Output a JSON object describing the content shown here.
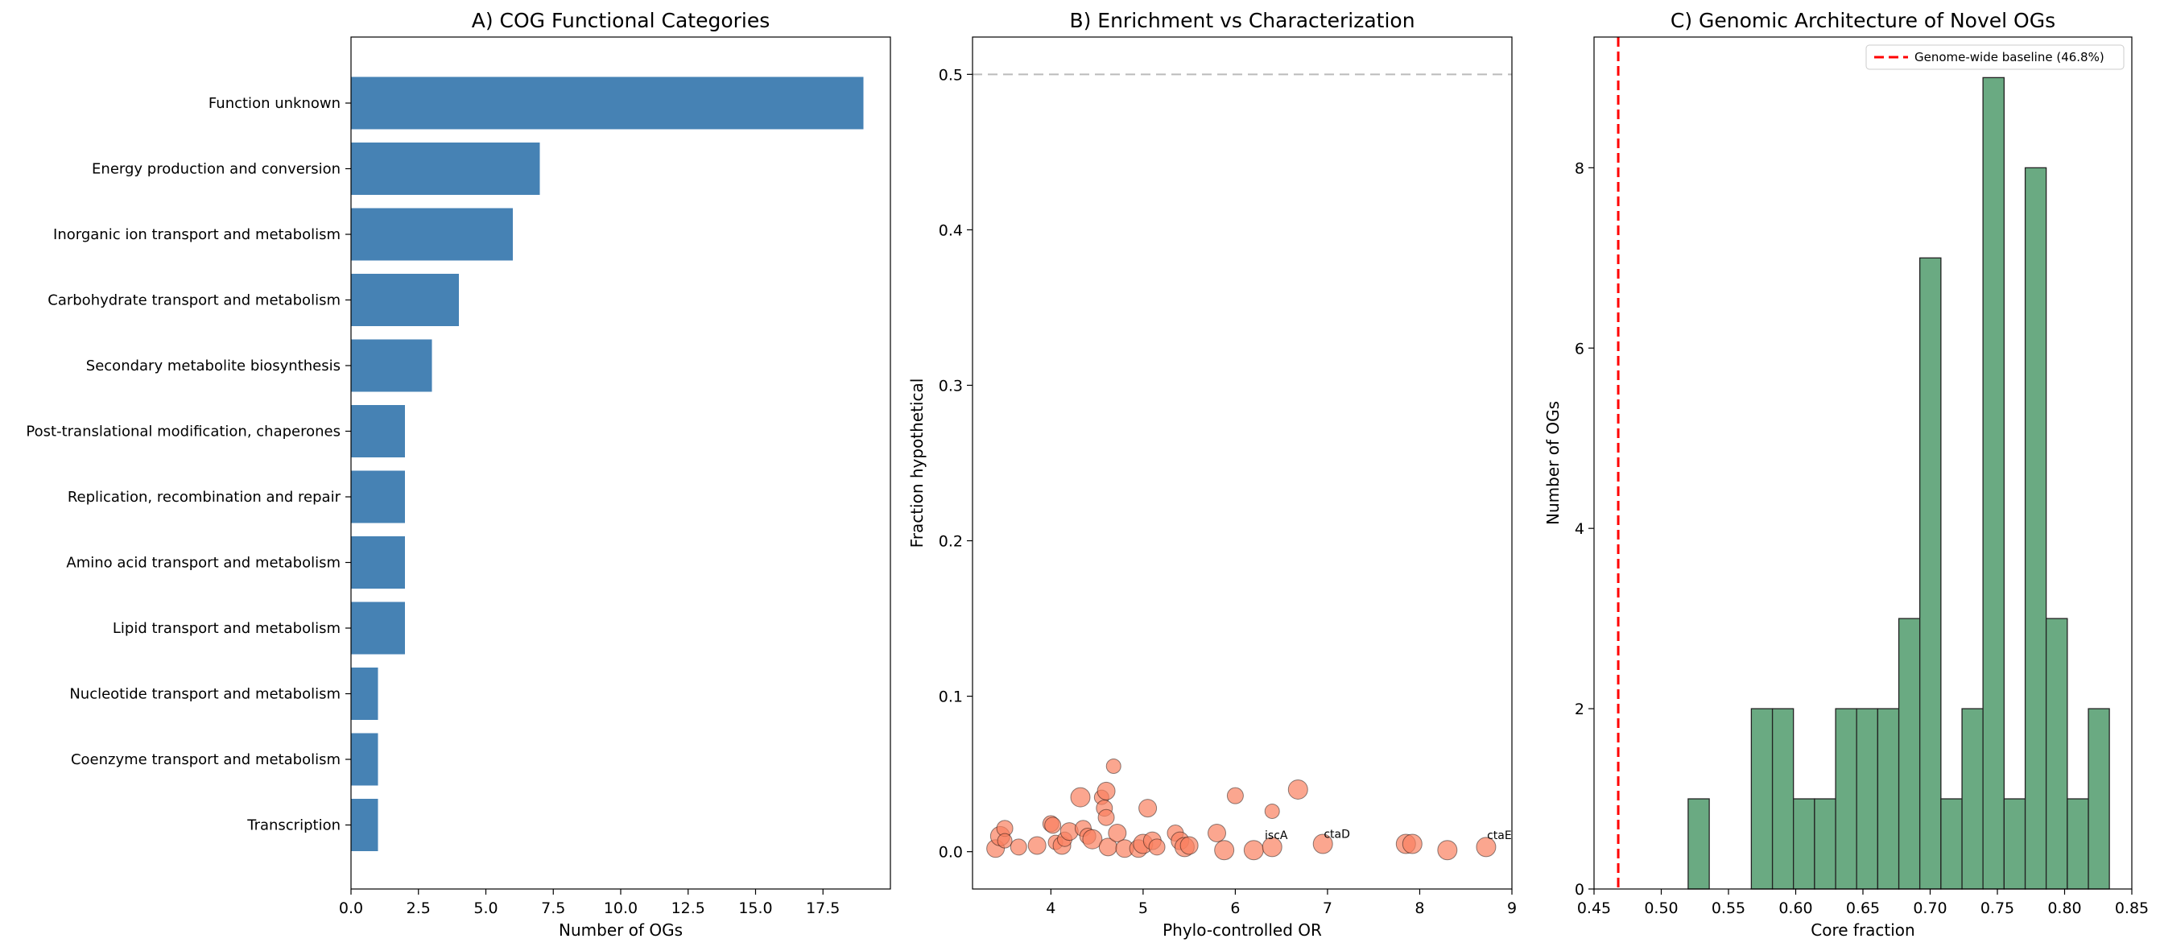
{
  "chart_data": [
    {
      "type": "bar",
      "orientation": "horizontal",
      "title": "A) COG Functional Categories",
      "xlabel": "Number of OGs",
      "ylabel": "",
      "xlim": [
        0,
        20
      ],
      "xticks": [
        "0.0",
        "2.5",
        "5.0",
        "7.5",
        "10.0",
        "12.5",
        "15.0",
        "17.5"
      ],
      "bar_color": "#4682b4",
      "categories": [
        "Function unknown",
        "Energy production and conversion",
        "Inorganic ion transport and metabolism",
        "Carbohydrate transport and metabolism",
        "Secondary metabolite biosynthesis",
        "Post-translational modification, chaperones",
        "Replication, recombination and repair",
        "Amino acid transport and metabolism",
        "Lipid transport and metabolism",
        "Nucleotide transport and metabolism",
        "Coenzyme transport and metabolism",
        "Transcription"
      ],
      "values": [
        19,
        7,
        6,
        4,
        3,
        2,
        2,
        2,
        2,
        1,
        1,
        1
      ]
    },
    {
      "type": "scatter",
      "title": "B) Enrichment vs Characterization",
      "xlabel": "Phylo-controlled OR",
      "ylabel": "Fraction hypothetical",
      "xlim": [
        3.15,
        9.0
      ],
      "ylim": [
        -0.024,
        0.524
      ],
      "xticks": [
        "4",
        "5",
        "6",
        "7",
        "8",
        "9"
      ],
      "yticks": [
        "0.0",
        "0.1",
        "0.2",
        "0.3",
        "0.4",
        "0.5"
      ],
      "reference_line_y": 0.5,
      "point_color": "#fa8060",
      "points": [
        {
          "x": 3.4,
          "y": 0.002,
          "s": 11
        },
        {
          "x": 3.45,
          "y": 0.01,
          "s": 12
        },
        {
          "x": 3.5,
          "y": 0.015,
          "s": 10
        },
        {
          "x": 3.5,
          "y": 0.007,
          "s": 9
        },
        {
          "x": 3.65,
          "y": 0.003,
          "s": 10
        },
        {
          "x": 3.85,
          "y": 0.004,
          "s": 11
        },
        {
          "x": 4.0,
          "y": 0.018,
          "s": 10
        },
        {
          "x": 4.02,
          "y": 0.017,
          "s": 10
        },
        {
          "x": 4.05,
          "y": 0.006,
          "s": 9
        },
        {
          "x": 4.12,
          "y": 0.004,
          "s": 11
        },
        {
          "x": 4.15,
          "y": 0.008,
          "s": 9
        },
        {
          "x": 4.2,
          "y": 0.013,
          "s": 11
        },
        {
          "x": 4.32,
          "y": 0.035,
          "s": 12
        },
        {
          "x": 4.35,
          "y": 0.015,
          "s": 10
        },
        {
          "x": 4.4,
          "y": 0.01,
          "s": 10
        },
        {
          "x": 4.45,
          "y": 0.008,
          "s": 12
        },
        {
          "x": 4.55,
          "y": 0.035,
          "s": 9
        },
        {
          "x": 4.58,
          "y": 0.028,
          "s": 10
        },
        {
          "x": 4.6,
          "y": 0.039,
          "s": 11
        },
        {
          "x": 4.6,
          "y": 0.022,
          "s": 10
        },
        {
          "x": 4.62,
          "y": 0.003,
          "s": 11
        },
        {
          "x": 4.68,
          "y": 0.055,
          "s": 9
        },
        {
          "x": 4.72,
          "y": 0.012,
          "s": 11
        },
        {
          "x": 4.8,
          "y": 0.002,
          "s": 11
        },
        {
          "x": 4.95,
          "y": 0.002,
          "s": 11
        },
        {
          "x": 5.0,
          "y": 0.005,
          "s": 12
        },
        {
          "x": 5.05,
          "y": 0.028,
          "s": 11
        },
        {
          "x": 5.1,
          "y": 0.007,
          "s": 11
        },
        {
          "x": 5.15,
          "y": 0.003,
          "s": 10
        },
        {
          "x": 5.35,
          "y": 0.012,
          "s": 10
        },
        {
          "x": 5.4,
          "y": 0.007,
          "s": 11
        },
        {
          "x": 5.45,
          "y": 0.003,
          "s": 12
        },
        {
          "x": 5.5,
          "y": 0.004,
          "s": 11
        },
        {
          "x": 5.8,
          "y": 0.012,
          "s": 11
        },
        {
          "x": 5.88,
          "y": 0.001,
          "s": 12
        },
        {
          "x": 6.0,
          "y": 0.036,
          "s": 10
        },
        {
          "x": 6.2,
          "y": 0.001,
          "s": 12
        },
        {
          "x": 6.4,
          "y": 0.026,
          "s": 9
        },
        {
          "x": 6.4,
          "y": 0.003,
          "s": 12
        },
        {
          "x": 6.68,
          "y": 0.04,
          "s": 12
        },
        {
          "x": 6.95,
          "y": 0.005,
          "s": 12
        },
        {
          "x": 7.85,
          "y": 0.005,
          "s": 12
        },
        {
          "x": 7.92,
          "y": 0.005,
          "s": 12
        },
        {
          "x": 8.3,
          "y": 0.001,
          "s": 12
        },
        {
          "x": 8.72,
          "y": 0.003,
          "s": 12
        }
      ],
      "annotations": [
        {
          "text": "iscA",
          "x": 6.32,
          "y": 0.008
        },
        {
          "text": "ctaD",
          "x": 6.96,
          "y": 0.009
        },
        {
          "text": "ctaE",
          "x": 8.73,
          "y": 0.008
        }
      ]
    },
    {
      "type": "histogram",
      "title": "C) Genomic Architecture of Novel OGs",
      "xlabel": "Core fraction",
      "ylabel": "Number of OGs",
      "xlim": [
        0.45,
        0.85
      ],
      "ylim": [
        0,
        9.45
      ],
      "xticks": [
        "0.45",
        "0.50",
        "0.55",
        "0.60",
        "0.65",
        "0.70",
        "0.75",
        "0.80",
        "0.85"
      ],
      "yticks": [
        "0",
        "2",
        "4",
        "6",
        "8"
      ],
      "bar_color": "#6aaa82",
      "bin_edges": [
        0.52,
        0.5357,
        0.5513,
        0.567,
        0.5827,
        0.5983,
        0.614,
        0.6297,
        0.6453,
        0.661,
        0.6767,
        0.6923,
        0.708,
        0.7237,
        0.7393,
        0.755,
        0.7707,
        0.7863,
        0.802,
        0.8177,
        0.8333
      ],
      "counts": [
        1,
        0,
        0,
        2,
        2,
        1,
        1,
        2,
        2,
        2,
        3,
        7,
        1,
        2,
        9,
        1,
        8,
        3,
        1,
        2
      ],
      "baseline": {
        "x": 0.468,
        "label": "Genome-wide baseline (46.8%)",
        "color": "#ff0000"
      }
    }
  ]
}
